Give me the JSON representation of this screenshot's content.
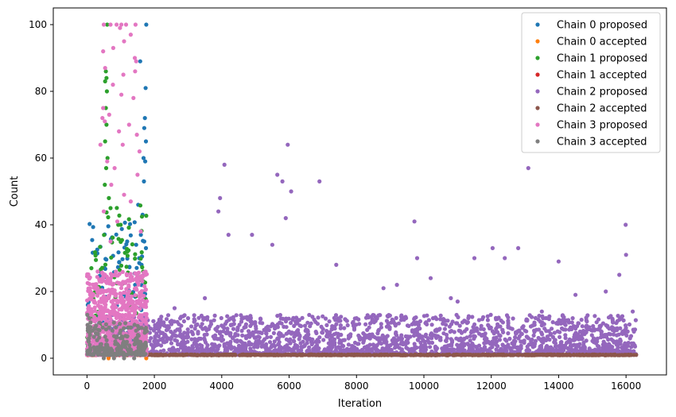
{
  "chart_data": {
    "type": "scatter",
    "title": "",
    "xlabel": "Iteration",
    "ylabel": "Count",
    "xlim": [
      -1000,
      17200
    ],
    "ylim": [
      -5,
      105
    ],
    "xticks": [
      0,
      2000,
      4000,
      6000,
      8000,
      10000,
      12000,
      14000,
      16000
    ],
    "xtick_labels": [
      "0",
      "2000",
      "4000",
      "6000",
      "8000",
      "10000",
      "12000",
      "14000",
      "16000"
    ],
    "yticks": [
      0,
      20,
      40,
      60,
      80,
      100
    ],
    "ytick_labels": [
      "0",
      "20",
      "40",
      "60",
      "80",
      "100"
    ],
    "grid": false,
    "legend_position": "top-right",
    "series": [
      {
        "name": "Chain 0 proposed",
        "color": "#1f77b4",
        "x_range": [
          0,
          1780
        ],
        "points": [
          [
            1760,
            100
          ],
          [
            1580,
            89
          ],
          [
            1740,
            81
          ],
          [
            1720,
            72
          ],
          [
            1700,
            69
          ],
          [
            1750,
            65
          ],
          [
            1680,
            60
          ],
          [
            1730,
            59
          ],
          [
            1690,
            53
          ],
          [
            1520,
            46
          ],
          [
            1650,
            43
          ],
          [
            1600,
            37
          ],
          [
            1700,
            35
          ],
          [
            1460,
            34
          ],
          [
            1750,
            33
          ],
          [
            1550,
            30
          ],
          [
            1620,
            28
          ],
          [
            1690,
            25
          ],
          [
            1430,
            22
          ],
          [
            1660,
            20
          ],
          [
            1720,
            18
          ],
          [
            1580,
            15
          ]
        ]
      },
      {
        "name": "Chain 0 accepted",
        "color": "#ff7f0e",
        "x_range": [
          0,
          1780
        ],
        "points": [
          [
            1760,
            0
          ],
          [
            640,
            0
          ],
          [
            900,
            1
          ],
          [
            1200,
            1
          ],
          [
            1700,
            1
          ]
        ]
      },
      {
        "name": "Chain 1 proposed",
        "color": "#2ca02c",
        "x_range": [
          0,
          1780
        ],
        "points": [
          [
            600,
            100
          ],
          [
            560,
            86
          ],
          [
            580,
            84
          ],
          [
            540,
            83
          ],
          [
            590,
            80
          ],
          [
            560,
            75
          ],
          [
            580,
            70
          ],
          [
            540,
            65
          ],
          [
            610,
            60
          ],
          [
            570,
            57
          ],
          [
            530,
            52
          ],
          [
            650,
            48
          ],
          [
            700,
            45
          ],
          [
            1000,
            40
          ],
          [
            1200,
            32
          ],
          [
            1720,
            12
          ],
          [
            1750,
            9
          ]
        ]
      },
      {
        "name": "Chain 1 accepted",
        "color": "#d62728",
        "x_range": [
          0,
          1780
        ],
        "points": [
          [
            50,
            1
          ],
          [
            120,
            1
          ],
          [
            300,
            1
          ],
          [
            500,
            1
          ],
          [
            800,
            1
          ],
          [
            1100,
            1
          ],
          [
            1400,
            1
          ],
          [
            1700,
            1
          ]
        ]
      },
      {
        "name": "Chain 2 proposed",
        "color": "#9467bd",
        "x_range": [
          200,
          16300
        ],
        "points": [
          [
            4080,
            58
          ],
          [
            5960,
            64
          ],
          [
            5650,
            55
          ],
          [
            5800,
            53
          ],
          [
            6900,
            53
          ],
          [
            13100,
            57
          ],
          [
            6060,
            50
          ],
          [
            3950,
            48
          ],
          [
            3900,
            44
          ],
          [
            5900,
            42
          ],
          [
            9720,
            41
          ],
          [
            15990,
            40
          ],
          [
            4200,
            37
          ],
          [
            4900,
            37
          ],
          [
            5500,
            34
          ],
          [
            12040,
            33
          ],
          [
            12800,
            33
          ],
          [
            9800,
            30
          ],
          [
            11500,
            30
          ],
          [
            12400,
            30
          ],
          [
            16000,
            31
          ],
          [
            14000,
            29
          ],
          [
            7400,
            28
          ],
          [
            15800,
            25
          ],
          [
            10200,
            24
          ],
          [
            8800,
            21
          ],
          [
            9200,
            22
          ],
          [
            10800,
            18
          ],
          [
            11000,
            17
          ],
          [
            13500,
            14
          ],
          [
            2200,
            10
          ],
          [
            2600,
            15
          ],
          [
            3000,
            12
          ],
          [
            3500,
            18
          ],
          [
            8000,
            12
          ],
          [
            14500,
            19
          ],
          [
            15400,
            20
          ],
          [
            16200,
            14
          ]
        ]
      },
      {
        "name": "Chain 2 accepted",
        "color": "#8c564b",
        "x_range": [
          1780,
          16300
        ],
        "points": [
          [
            2000,
            1
          ],
          [
            4000,
            1
          ],
          [
            6000,
            1
          ],
          [
            8000,
            1
          ],
          [
            10000,
            1
          ],
          [
            12000,
            1
          ],
          [
            14000,
            1
          ],
          [
            16000,
            1
          ],
          [
            16300,
            1
          ]
        ]
      },
      {
        "name": "Chain 3 proposed",
        "color": "#e377c2",
        "x_range": [
          0,
          1780
        ],
        "points": [
          [
            500,
            100
          ],
          [
            700,
            100
          ],
          [
            880,
            100
          ],
          [
            1020,
            100
          ],
          [
            1160,
            100
          ],
          [
            980,
            99
          ],
          [
            1440,
            100
          ],
          [
            1300,
            97
          ],
          [
            1100,
            95
          ],
          [
            780,
            93
          ],
          [
            480,
            92
          ],
          [
            1420,
            90
          ],
          [
            1460,
            89
          ],
          [
            540,
            87
          ],
          [
            1430,
            86
          ],
          [
            1080,
            85
          ],
          [
            770,
            82
          ],
          [
            1020,
            79
          ],
          [
            1380,
            78
          ],
          [
            480,
            75
          ],
          [
            660,
            73
          ],
          [
            460,
            72
          ],
          [
            530,
            71
          ],
          [
            1250,
            70
          ],
          [
            950,
            68
          ],
          [
            1480,
            67
          ],
          [
            400,
            64
          ],
          [
            1060,
            64
          ],
          [
            1560,
            62
          ],
          [
            600,
            59
          ],
          [
            820,
            57
          ],
          [
            1500,
            55
          ],
          [
            720,
            52
          ],
          [
            1100,
            49
          ],
          [
            1300,
            47
          ],
          [
            500,
            44
          ],
          [
            900,
            41
          ],
          [
            1600,
            38
          ],
          [
            700,
            35
          ]
        ]
      },
      {
        "name": "Chain 3 accepted",
        "color": "#7f7f7f",
        "x_range": [
          0,
          1780
        ],
        "points": [
          [
            10,
            13
          ],
          [
            20,
            10
          ],
          [
            40,
            8
          ],
          [
            60,
            6
          ],
          [
            80,
            4
          ],
          [
            100,
            3
          ],
          [
            30,
            2
          ],
          [
            70,
            12
          ],
          [
            90,
            7
          ],
          [
            50,
            5
          ],
          [
            500,
            0
          ],
          [
            800,
            0
          ],
          [
            1100,
            0
          ],
          [
            1400,
            0
          ],
          [
            1700,
            1
          ]
        ]
      }
    ]
  }
}
